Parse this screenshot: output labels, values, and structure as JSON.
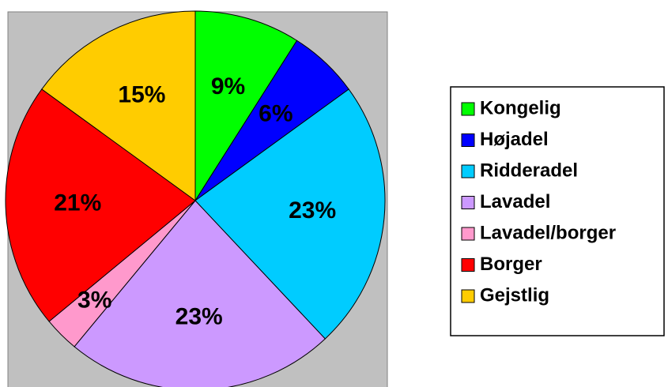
{
  "chart_data": {
    "type": "pie",
    "categories": [
      "Kongelig",
      "Højadel",
      "Ridderadel",
      "Lavadel",
      "Lavadel/borger",
      "Borger",
      "Gejstlig"
    ],
    "values": [
      9,
      6,
      23,
      23,
      3,
      21,
      15
    ],
    "colors": [
      "#00ff00",
      "#0000ff",
      "#00ccff",
      "#cc99ff",
      "#ff99cc",
      "#ff0000",
      "#ffcc00"
    ],
    "legend": "right"
  }
}
